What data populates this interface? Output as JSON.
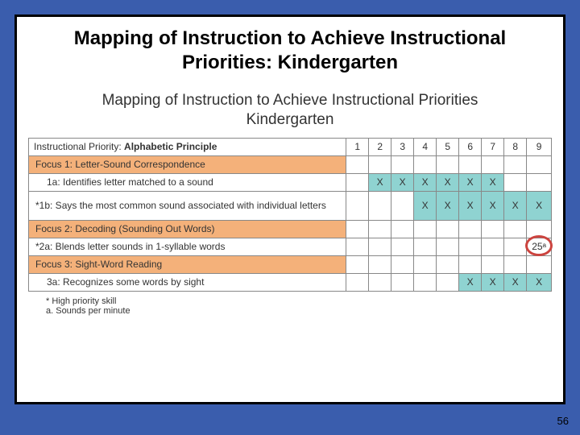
{
  "title": "Mapping of Instruction to Achieve Instructional Priorities: Kindergarten",
  "subtitle_line1": "Mapping of Instruction to Achieve Instructional Priorities",
  "subtitle_line2": "Kindergarten",
  "header": {
    "priority_label": "Instructional Priority:",
    "priority_name": "Alphabetic Principle",
    "cols": [
      "1",
      "2",
      "3",
      "4",
      "5",
      "6",
      "7",
      "8",
      "9"
    ]
  },
  "rows": [
    {
      "type": "focus",
      "label": "Focus 1: Letter-Sound Correspondence",
      "cells": [
        "",
        "",
        "",
        "",
        "",
        "",
        "",
        "",
        ""
      ]
    },
    {
      "type": "sub",
      "label": "1a:  Identifies letter matched to a sound",
      "star": false,
      "cells": [
        "",
        "X",
        "X",
        "X",
        "X",
        "X",
        "X",
        "",
        ""
      ],
      "on": [
        1,
        2,
        3,
        4,
        5,
        6
      ]
    },
    {
      "type": "sub",
      "label": "*1b:  Says the most common sound associated with individual letters",
      "star": true,
      "tall": true,
      "cells": [
        "",
        "",
        "",
        "X",
        "X",
        "X",
        "X",
        "X",
        "X"
      ],
      "on": [
        3,
        4,
        5,
        6,
        7,
        8
      ]
    },
    {
      "type": "focus",
      "label": "Focus 2: Decoding (Sounding Out Words)",
      "cells": [
        "",
        "",
        "",
        "",
        "",
        "",
        "",
        "",
        ""
      ]
    },
    {
      "type": "sub",
      "label": "*2a:  Blends letter sounds in 1-syllable words",
      "star": true,
      "cells": [
        "",
        "",
        "",
        "",
        "",
        "",
        "",
        "",
        "25ᵃ"
      ],
      "on": [],
      "circled_col": 8
    },
    {
      "type": "focus",
      "label": "Focus 3: Sight-Word Reading",
      "cells": [
        "",
        "",
        "",
        "",
        "",
        "",
        "",
        "",
        ""
      ]
    },
    {
      "type": "sub",
      "label": "3a:  Recognizes some words by sight",
      "star": false,
      "cells": [
        "",
        "",
        "",
        "",
        "",
        "X",
        "X",
        "X",
        "X"
      ],
      "on": [
        5,
        6,
        7,
        8
      ]
    }
  ],
  "footnotes": [
    "* High priority skill",
    "a. Sounds per minute"
  ],
  "page_number": "56",
  "colors": {
    "page_bg": "#3a5dad",
    "slide_bg": "#ffffff",
    "slide_border": "#000000",
    "focus_bg": "#f4b17a",
    "x_bg": "#8fd3d1",
    "circle": "#cc443f",
    "grid": "#888888"
  }
}
